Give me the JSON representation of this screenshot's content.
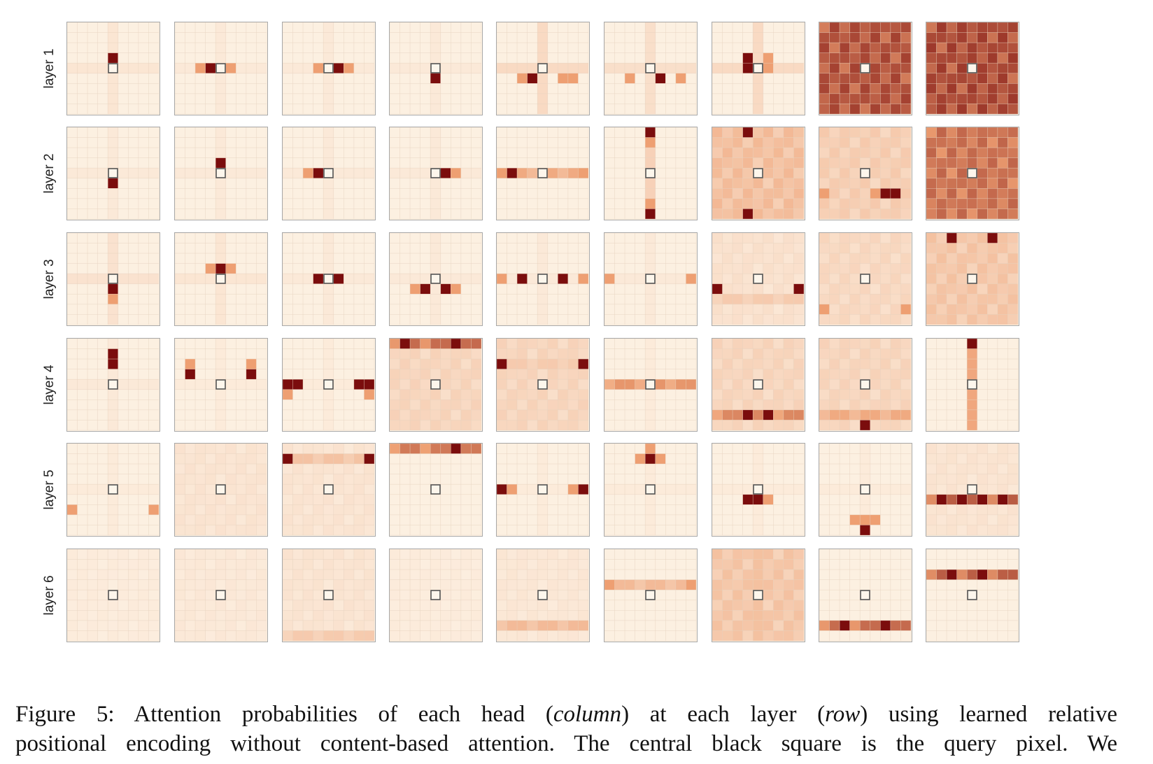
{
  "figure": {
    "row_labels": [
      "layer 1",
      "layer 2",
      "layer 3",
      "layer 4",
      "layer 5",
      "layer 6"
    ],
    "heads_per_layer": 9,
    "grid_cells": 9,
    "query_cell": [
      4,
      4
    ],
    "colors": {
      "low": "#fdf3e6",
      "mid": "#ee9f72",
      "high": "#7b0d0d",
      "query_outline": "#555555",
      "panel_border": "#a8a8a8"
    }
  },
  "caption": {
    "line1_a": "Figure 5:  Attention probabilities of each head (",
    "line1_b": "column",
    "line1_c": ") at each layer (",
    "line1_d": "row",
    "line1_e": ") using learned relative",
    "line2": "positional encoding without content-based attention. The central black square is the query pixel. We"
  }
}
